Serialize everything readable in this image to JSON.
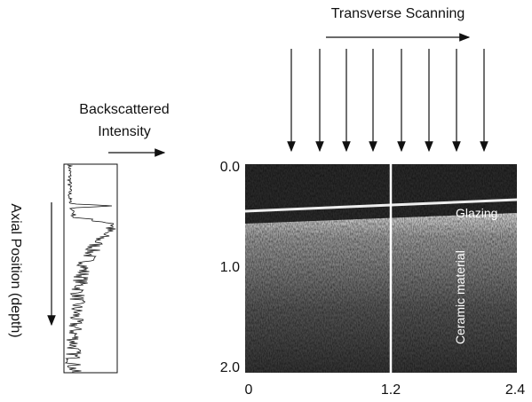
{
  "header": {
    "title": "Transverse Scanning"
  },
  "profile": {
    "label_line1": "Backscattered",
    "label_line2": "Intensity",
    "axis_label": "Axial Position (depth)"
  },
  "image": {
    "yticks": [
      "0.0",
      "1.0",
      "2.0"
    ],
    "xticks": [
      "0",
      "1.2",
      "2.4"
    ],
    "labels": {
      "glazing": "Glazing",
      "ceramic": "Ceramic material"
    }
  }
}
